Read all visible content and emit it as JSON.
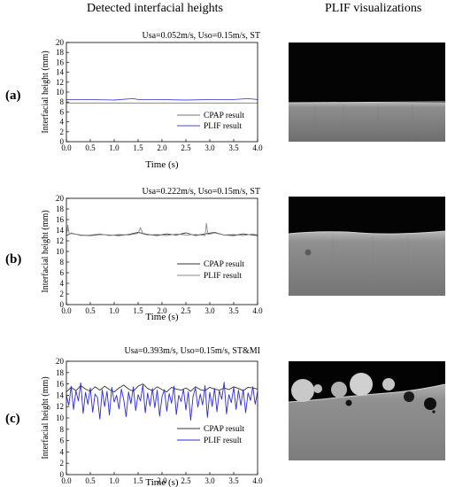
{
  "headings": {
    "left": "Detected interfacial heights",
    "right": "PLIF visualizations"
  },
  "panels": [
    {
      "label": "(a)",
      "condition": "Usa=0.052m/s, Uso=0.15m/s, ST"
    },
    {
      "label": "(b)",
      "condition": "Usa=0.222m/s, Uso=0.15m/s, ST"
    },
    {
      "label": "(c)",
      "condition": "Usa=0.393m/s, Uso=0.15m/s, ST&MI"
    }
  ],
  "colors": {
    "cpap": "#333333",
    "plif_a": "#4a4ad8",
    "plif_b": "#888888",
    "plif_c": "#2b2bdc",
    "image_dark": "#050505",
    "image_liquid": "#8a8a8a"
  },
  "chart_data": [
    {
      "type": "line",
      "title": "Usa=0.052m/s, Uso=0.15m/s, ST",
      "xlabel": "Time (s)",
      "ylabel": "Interfacial height (mm)",
      "xlim": [
        0,
        4
      ],
      "ylim": [
        0,
        20
      ],
      "xticks": [
        "0.0",
        "0.5",
        "1.0",
        "1.5",
        "2.0",
        "2.5",
        "3.0",
        "3.5",
        "4.0"
      ],
      "yticks": [
        "0",
        "2",
        "4",
        "6",
        "8",
        "10",
        "12",
        "14",
        "16",
        "18",
        "20"
      ],
      "legend_position": "bottom-right",
      "series": [
        {
          "name": "CPAP result",
          "x": [
            0,
            0.5,
            1.0,
            1.5,
            2.0,
            2.5,
            3.0,
            3.5,
            4.0
          ],
          "values": [
            7.8,
            7.8,
            7.8,
            7.8,
            7.8,
            7.8,
            7.8,
            7.8,
            7.8
          ]
        },
        {
          "name": "PLIF result",
          "x": [
            0,
            0.5,
            1.0,
            1.4,
            1.5,
            2.0,
            2.5,
            3.0,
            3.5,
            3.8,
            4.0
          ],
          "values": [
            8.5,
            8.5,
            8.4,
            8.7,
            8.5,
            8.5,
            8.4,
            8.5,
            8.5,
            8.7,
            8.5
          ]
        }
      ]
    },
    {
      "type": "line",
      "title": "Usa=0.222m/s, Uso=0.15m/s, ST",
      "xlabel": "Time (s)",
      "ylabel": "Interfacial height (mm)",
      "xlim": [
        0,
        4
      ],
      "ylim": [
        0,
        20
      ],
      "xticks": [
        "0.0",
        "0.5",
        "1.0",
        "1.5",
        "2.0",
        "2.5",
        "3.0",
        "3.5",
        "4.0"
      ],
      "yticks": [
        "0",
        "2",
        "4",
        "6",
        "8",
        "10",
        "12",
        "14",
        "16",
        "18",
        "20"
      ],
      "legend_position": "bottom-right",
      "series": [
        {
          "name": "CPAP result",
          "x": [
            0,
            0.1,
            0.3,
            0.5,
            0.7,
            0.9,
            1.1,
            1.3,
            1.5,
            1.7,
            1.9,
            2.1,
            2.3,
            2.5,
            2.7,
            2.9,
            3.1,
            3.3,
            3.5,
            3.7,
            3.9,
            4.0
          ],
          "values": [
            13.0,
            13.4,
            13.1,
            13.0,
            13.2,
            13.1,
            13.0,
            13.2,
            13.6,
            13.2,
            13.0,
            13.3,
            13.1,
            13.5,
            13.0,
            13.3,
            13.6,
            13.1,
            13.0,
            13.3,
            13.1,
            13.0
          ]
        },
        {
          "name": "PLIF result",
          "x": [
            0,
            0.03,
            0.06,
            0.1,
            0.3,
            0.5,
            0.7,
            0.9,
            1.1,
            1.3,
            1.5,
            1.55,
            1.6,
            1.7,
            1.9,
            2.1,
            2.3,
            2.5,
            2.7,
            2.9,
            2.93,
            2.96,
            3.1,
            3.3,
            3.5,
            3.7,
            3.9,
            4.0
          ],
          "values": [
            13.2,
            15.0,
            13.2,
            13.5,
            13.0,
            13.1,
            13.3,
            13.0,
            13.2,
            13.1,
            13.4,
            14.5,
            13.3,
            13.1,
            13.2,
            13.0,
            13.3,
            13.1,
            13.2,
            13.0,
            15.3,
            13.2,
            13.5,
            13.1,
            13.2,
            13.0,
            13.3,
            13.1
          ]
        }
      ]
    },
    {
      "type": "line",
      "title": "Usa=0.393m/s, Uso=0.15m/s, ST&MI",
      "xlabel": "Time (s)",
      "ylabel": "Interfacial height (mm)",
      "xlim": [
        0,
        4
      ],
      "ylim": [
        0,
        20
      ],
      "xticks": [
        "0.0",
        "0.5",
        "1.0",
        "1.5",
        "2.0",
        "2.5",
        "3.0",
        "3.5",
        "4.0"
      ],
      "yticks": [
        "0",
        "2",
        "4",
        "6",
        "8",
        "10",
        "12",
        "14",
        "16",
        "18",
        "20"
      ],
      "legend_position": "bottom-right",
      "series": [
        {
          "name": "CPAP result",
          "x": [
            0,
            0.1,
            0.2,
            0.3,
            0.4,
            0.5,
            0.6,
            0.7,
            0.8,
            0.9,
            1.0,
            1.1,
            1.2,
            1.3,
            1.4,
            1.5,
            1.6,
            1.7,
            1.8,
            1.9,
            2.0,
            2.1,
            2.2,
            2.3,
            2.4,
            2.5,
            2.6,
            2.7,
            2.8,
            2.9,
            3.0,
            3.1,
            3.2,
            3.3,
            3.4,
            3.5,
            3.6,
            3.7,
            3.8,
            3.9,
            4.0
          ],
          "values": [
            14.6,
            15.4,
            14.8,
            15.7,
            15.1,
            14.7,
            15.5,
            14.9,
            15.6,
            15.0,
            14.6,
            15.3,
            15.8,
            15.1,
            14.7,
            15.6,
            16.0,
            15.2,
            14.8,
            15.5,
            15.0,
            14.6,
            15.4,
            15.1,
            14.9,
            15.3,
            14.7,
            15.5,
            15.0,
            14.8,
            15.4,
            15.1,
            14.9,
            15.3,
            15.0,
            15.5,
            15.2,
            14.8,
            15.4,
            15.3,
            15.1
          ]
        },
        {
          "name": "PLIF result",
          "x": [
            0,
            0.05,
            0.1,
            0.15,
            0.2,
            0.25,
            0.3,
            0.35,
            0.4,
            0.45,
            0.5,
            0.55,
            0.6,
            0.65,
            0.7,
            0.75,
            0.8,
            0.85,
            0.9,
            0.95,
            1.0,
            1.05,
            1.1,
            1.15,
            1.2,
            1.25,
            1.3,
            1.35,
            1.4,
            1.45,
            1.5,
            1.55,
            1.6,
            1.65,
            1.7,
            1.75,
            1.8,
            1.85,
            1.9,
            1.95,
            2.0,
            2.05,
            2.1,
            2.15,
            2.2,
            2.25,
            2.3,
            2.35,
            2.4,
            2.45,
            2.5,
            2.55,
            2.6,
            2.65,
            2.7,
            2.75,
            2.8,
            2.85,
            2.9,
            2.95,
            3.0,
            3.05,
            3.1,
            3.15,
            3.2,
            3.25,
            3.3,
            3.35,
            3.4,
            3.45,
            3.5,
            3.55,
            3.6,
            3.65,
            3.7,
            3.75,
            3.8,
            3.85,
            3.9,
            3.95,
            4.0
          ],
          "values": [
            14.0,
            12.2,
            15.6,
            11.5,
            14.8,
            13.0,
            16.2,
            10.8,
            14.5,
            12.4,
            15.3,
            11.0,
            14.2,
            13.6,
            9.8,
            15.0,
            12.0,
            14.7,
            10.5,
            15.4,
            12.8,
            14.0,
            11.6,
            15.1,
            13.2,
            10.2,
            14.6,
            12.5,
            15.5,
            11.3,
            14.1,
            13.0,
            15.8,
            10.9,
            14.4,
            12.1,
            15.2,
            11.8,
            14.9,
            10.3,
            13.7,
            15.0,
            11.2,
            14.3,
            12.6,
            15.6,
            10.6,
            14.0,
            12.9,
            15.1,
            11.4,
            14.6,
            9.6,
            13.8,
            15.3,
            11.9,
            14.2,
            12.3,
            15.7,
            10.1,
            14.5,
            12.0,
            15.2,
            11.1,
            14.8,
            13.3,
            16.3,
            10.7,
            14.1,
            12.7,
            15.4,
            11.5,
            14.9,
            12.2,
            15.0,
            10.9,
            14.4,
            13.1,
            15.5,
            12.4,
            14.7
          ]
        }
      ]
    }
  ]
}
